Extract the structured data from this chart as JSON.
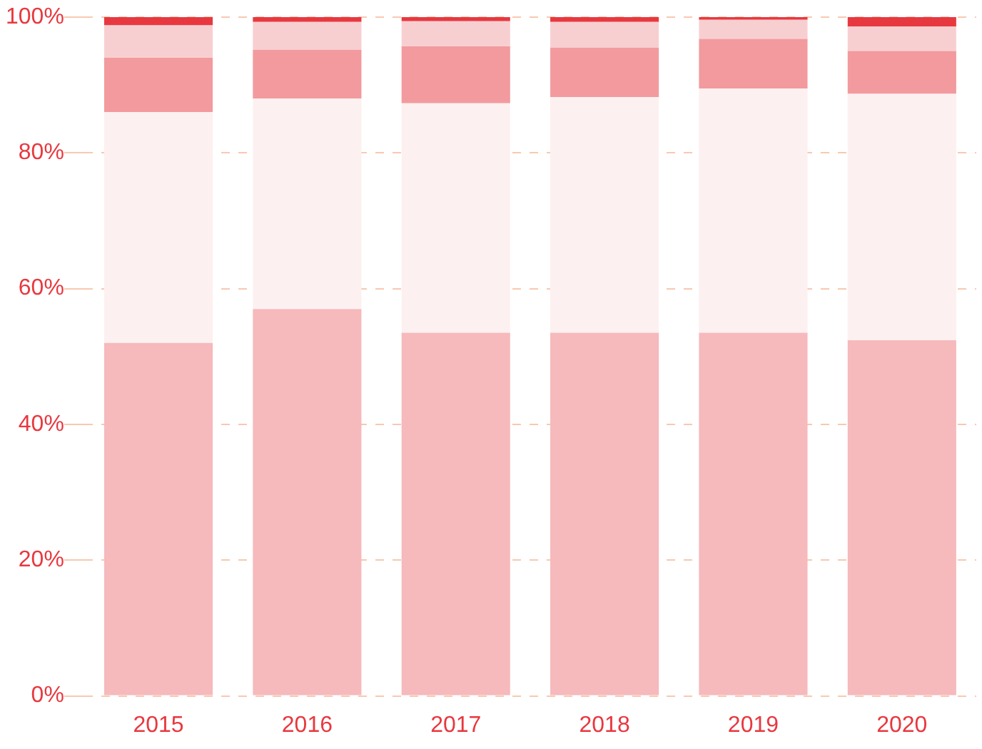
{
  "chart_data": {
    "type": "bar",
    "stacked": true,
    "categories": [
      "2015",
      "2016",
      "2017",
      "2018",
      "2019",
      "2020"
    ],
    "series": [
      {
        "color": "#f6b9bc",
        "values": [
          52,
          57,
          53.5,
          53.5,
          53.5,
          52.4
        ]
      },
      {
        "color": "#fdf0f0",
        "values": [
          34,
          31,
          33.8,
          34.7,
          36,
          36.3
        ]
      },
      {
        "color": "#f29a9e",
        "values": [
          8,
          7.2,
          8.4,
          7.3,
          7.3,
          6.3
        ]
      },
      {
        "color": "#f8cfd1",
        "values": [
          4.8,
          4.1,
          3.7,
          3.8,
          2.8,
          3.6
        ]
      },
      {
        "color": "#e8383f",
        "values": [
          1.2,
          0.7,
          0.6,
          0.7,
          0.4,
          1.4
        ]
      }
    ],
    "ylim": [
      0,
      100
    ],
    "yticks": [
      {
        "value": 0,
        "label": "0%"
      },
      {
        "value": 20,
        "label": "20%"
      },
      {
        "value": 40,
        "label": "40%"
      },
      {
        "value": 60,
        "label": "60%"
      },
      {
        "value": 80,
        "label": "80%"
      },
      {
        "value": 100,
        "label": "100%"
      }
    ],
    "grid": "y",
    "legend": false
  }
}
